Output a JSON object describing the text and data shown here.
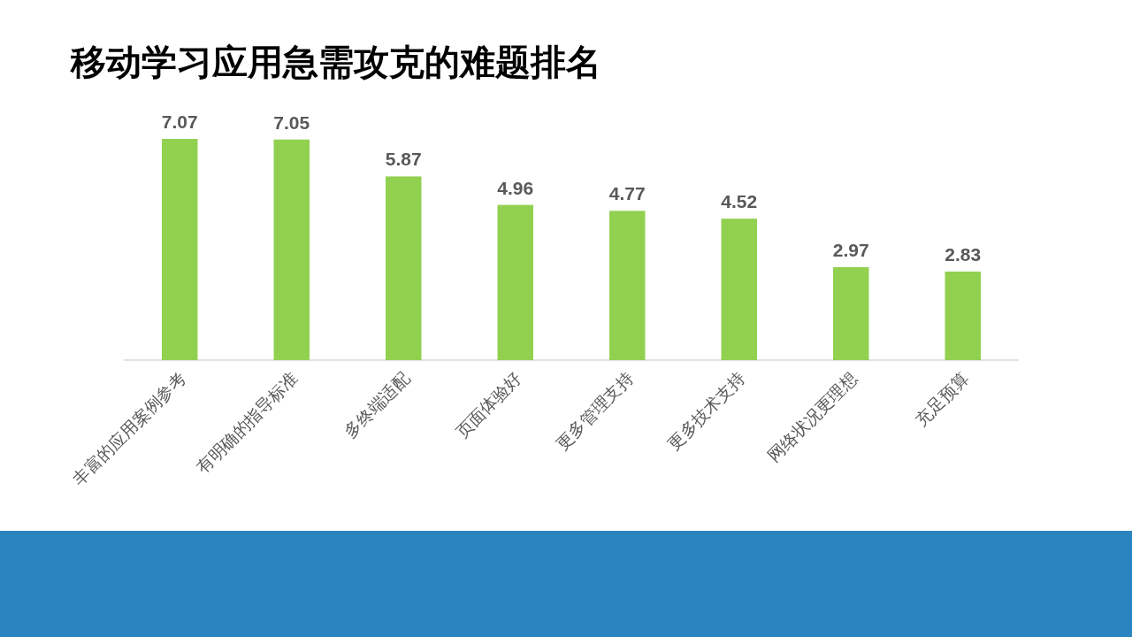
{
  "chart_data": {
    "type": "bar",
    "title": "移动学习应用急需攻克的难题排名",
    "categories": [
      "丰富的应用案例参考",
      "有明确的指导标准",
      "多终端适配",
      "页面体验好",
      "更多管理支持",
      "更多技术支持",
      "网络状况更理想",
      "充足预算"
    ],
    "values": [
      7.07,
      7.05,
      5.87,
      4.96,
      4.77,
      4.52,
      2.97,
      2.83
    ],
    "color": "#92d050",
    "data_labels": true
  }
}
